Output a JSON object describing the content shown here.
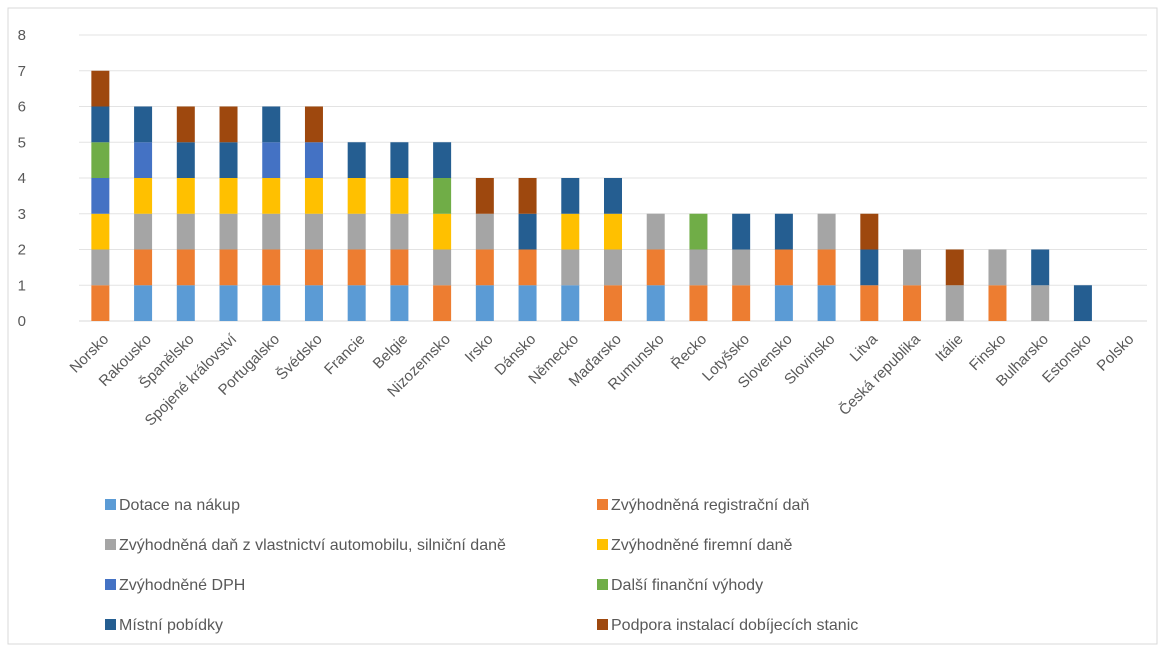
{
  "colors": {
    "Dotace na nákup": "#5B9BD5",
    "Zvýhodněná registrační daň": "#ED7D31",
    "Zvýhodněná daň z vlastnictví automobilu, silniční daně": "#A5A5A5",
    "Zvýhodněné firemní daně": "#FFC000",
    "Zvýhodněné DPH": "#4472C4",
    "Další finanční výhody": "#70AD47",
    "Místní pobídky": "#255E91",
    "Podpora instalací dobíjecích stanic": "#9E480E"
  },
  "chart_data": {
    "type": "bar",
    "stacked": true,
    "title": "",
    "xlabel": "",
    "ylabel": "",
    "ylim": [
      0,
      8
    ],
    "yticks": [
      0,
      1,
      2,
      3,
      4,
      5,
      6,
      7,
      8
    ],
    "grid": true,
    "legend_position": "bottom",
    "categories": [
      "Norsko",
      "Rakousko",
      "Španělsko",
      "Spojené království",
      "Portugalsko",
      "Švédsko",
      "Francie",
      "Belgie",
      "Nizozemsko",
      "Irsko",
      "Dánsko",
      "Německo",
      "Maďarsko",
      "Rumunsko",
      "Řecko",
      "Lotyšsko",
      "Slovensko",
      "Slovinsko",
      "Litva",
      "Česká republika",
      "Itálie",
      "Finsko",
      "Bulharsko",
      "Estonsko",
      "Polsko"
    ],
    "series": [
      {
        "name": "Dotace na nákup",
        "values": [
          0,
          1,
          1,
          1,
          1,
          1,
          1,
          1,
          0,
          1,
          1,
          1,
          0,
          1,
          0,
          0,
          1,
          1,
          0,
          0,
          0,
          0,
          0,
          0,
          0
        ]
      },
      {
        "name": "Zvýhodněná registrační daň",
        "values": [
          1,
          1,
          1,
          1,
          1,
          1,
          1,
          1,
          1,
          1,
          1,
          0,
          1,
          1,
          1,
          1,
          1,
          1,
          1,
          1,
          0,
          1,
          0,
          0,
          0
        ]
      },
      {
        "name": "Zvýhodněná daň z vlastnictví automobilu, silniční daně",
        "values": [
          1,
          1,
          1,
          1,
          1,
          1,
          1,
          1,
          1,
          1,
          0,
          1,
          1,
          1,
          1,
          1,
          0,
          1,
          0,
          1,
          1,
          1,
          1,
          0,
          0
        ]
      },
      {
        "name": "Zvýhodněné firemní daně",
        "values": [
          1,
          1,
          1,
          1,
          1,
          1,
          1,
          1,
          1,
          0,
          0,
          1,
          1,
          0,
          0,
          0,
          0,
          0,
          0,
          0,
          0,
          0,
          0,
          0,
          0
        ]
      },
      {
        "name": "Zvýhodněné DPH",
        "values": [
          1,
          1,
          0,
          0,
          1,
          1,
          0,
          0,
          0,
          0,
          0,
          0,
          0,
          0,
          0,
          0,
          0,
          0,
          0,
          0,
          0,
          0,
          0,
          0,
          0
        ]
      },
      {
        "name": "Další finanční výhody",
        "values": [
          1,
          0,
          0,
          0,
          0,
          0,
          0,
          0,
          1,
          0,
          0,
          0,
          0,
          0,
          1,
          0,
          0,
          0,
          0,
          0,
          0,
          0,
          0,
          0,
          0
        ]
      },
      {
        "name": "Místní pobídky",
        "values": [
          1,
          1,
          1,
          1,
          1,
          0,
          1,
          1,
          1,
          0,
          1,
          1,
          1,
          0,
          0,
          1,
          1,
          0,
          1,
          0,
          0,
          0,
          1,
          1,
          0
        ]
      },
      {
        "name": "Podpora instalací dobíjecích stanic",
        "values": [
          1,
          0,
          1,
          1,
          0,
          1,
          0,
          0,
          0,
          1,
          1,
          0,
          0,
          0,
          0,
          0,
          0,
          0,
          1,
          0,
          1,
          0,
          0,
          0,
          0
        ]
      }
    ]
  }
}
